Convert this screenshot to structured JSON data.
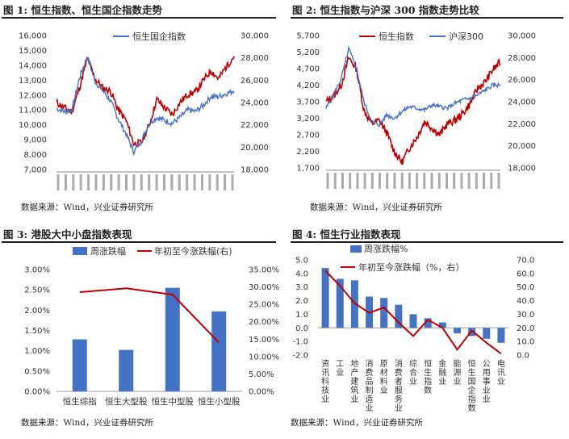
{
  "colors": {
    "red": "#c00000",
    "blue": "#4472c4",
    "bar": "#4472c4",
    "gray": "#333333"
  },
  "charts": [
    {
      "title": "图 1: 恒生指数、恒生国企指数走势",
      "source": "数据来源：Wind，兴业证券研究所"
    },
    {
      "title": "图 2: 恒生指数与沪深 300 指数走势比较",
      "source": "数据来源：Wind，兴业证券研究所"
    },
    {
      "title": "图 3: 港股大中小盘指数表现",
      "source": "数据来源：Wind，兴业证券研究所"
    },
    {
      "title": "图 4: 恒生行业指数表现",
      "source": "数据来源：Wind，兴业证券研究所"
    }
  ],
  "chart_data": [
    {
      "type": "line",
      "series": [
        {
          "name": "恒生指数",
          "axis": "right",
          "color": "#c00000"
        },
        {
          "name": "恒生国企指数",
          "axis": "left",
          "color": "#4472c4",
          "legend": true
        }
      ],
      "left_axis": {
        "ticks": [
          "16,000",
          "15,000",
          "14,000",
          "13,000",
          "12,000",
          "11,000",
          "10,000",
          "9,000",
          "8,000",
          "7,000"
        ],
        "ylim": [
          7000,
          16000
        ]
      },
      "right_axis": {
        "ticks": [
          "30,000",
          "28,000",
          "26,000",
          "24,000",
          "22,000",
          "20,000",
          "18,000"
        ],
        "ylim": [
          17000,
          30000
        ]
      }
    },
    {
      "type": "line",
      "series": [
        {
          "name": "恒生指数",
          "axis": "right",
          "color": "#c00000",
          "legend": true
        },
        {
          "name": "沪深300",
          "axis": "left",
          "color": "#4472c4",
          "legend": true
        }
      ],
      "left_axis": {
        "ticks": [
          "5,700",
          "5,200",
          "4,700",
          "4,200",
          "3,700",
          "3,200",
          "2,700",
          "2,200",
          "1,700"
        ],
        "ylim": [
          1700,
          5700
        ]
      },
      "right_axis": {
        "ticks": [
          "30,000",
          "28,000",
          "26,000",
          "24,000",
          "22,000",
          "20,000",
          "18,000"
        ],
        "ylim": [
          18000,
          30000
        ]
      }
    },
    {
      "type": "bar",
      "categories": [
        "恒生综指",
        "恒生大型股",
        "恒生中型股",
        "恒生小型股"
      ],
      "series": [
        {
          "name": "周涨跌幅",
          "axis": "left",
          "values": [
            1.28,
            1.02,
            2.55,
            1.97
          ]
        },
        {
          "name": "年初至今涨跌幅(右)",
          "axis": "right",
          "type": "line",
          "values": [
            28.5,
            29.6,
            27.8,
            14.0
          ]
        }
      ],
      "left_axis": {
        "ticks": [
          "3.00%",
          "2.50%",
          "2.00%",
          "1.50%",
          "1.00%",
          "0.50%",
          "0.00%"
        ],
        "ylim": [
          0,
          3
        ]
      },
      "right_axis": {
        "ticks": [
          "35.00%",
          "30.00%",
          "25.00%",
          "20.00%",
          "15.00%",
          "10.00%",
          "5.00%",
          "0.00%"
        ],
        "ylim": [
          0,
          35
        ]
      }
    },
    {
      "type": "bar",
      "categories": [
        "资讯科技业",
        "工业",
        "地产建筑业",
        "消费品制造业",
        "原材料业",
        "消费者服务业",
        "综合业",
        "恒生指数",
        "金融业",
        "能源业",
        "恒生国企指数",
        "公用事业业",
        "电讯业"
      ],
      "series": [
        {
          "name": "周涨跌幅%",
          "axis": "left",
          "values": [
            4.4,
            3.6,
            3.5,
            2.3,
            2.2,
            1.7,
            1.0,
            0.7,
            0.4,
            -0.4,
            -0.6,
            -0.8,
            -1.1
          ]
        },
        {
          "name": "年初至今涨跌幅（%，右）",
          "axis": "right",
          "type": "line",
          "values": [
            62,
            51,
            38,
            31,
            35,
            24,
            14,
            26,
            20,
            4,
            18,
            9,
            1
          ]
        }
      ],
      "left_axis": {
        "ticks": [
          "5.0",
          "4.0",
          "3.0",
          "2.0",
          "1.0",
          "0.0",
          "-1.0",
          "-2.0"
        ],
        "ylim": [
          -2,
          5
        ]
      },
      "right_axis": {
        "ticks": [
          "70.0",
          "60.0",
          "50.0",
          "40.0",
          "30.0",
          "20.0",
          "10.0",
          "0.0"
        ],
        "ylim": [
          0,
          70
        ]
      }
    }
  ]
}
